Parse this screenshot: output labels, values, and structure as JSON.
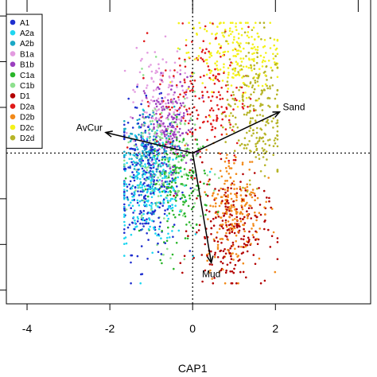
{
  "chart_data": {
    "type": "scatter",
    "xlabel": "CAP1",
    "xlim": [
      -4.5,
      4.3
    ],
    "ylim": [
      -3.3,
      3.35
    ],
    "x_ticks": [
      -4,
      -2,
      0,
      2
    ],
    "grid": false,
    "legend_position": "top-left",
    "series": [
      {
        "name": "A1",
        "color": "#1f2fcf",
        "center": [
          -1.1,
          -0.55
        ],
        "spread": [
          0.38,
          0.8
        ],
        "n": 300
      },
      {
        "name": "A2a",
        "color": "#1fd6f0",
        "center": [
          -1.0,
          -0.85
        ],
        "spread": [
          0.45,
          0.55
        ],
        "n": 240
      },
      {
        "name": "A2b",
        "color": "#1aa8c6",
        "center": [
          -1.15,
          -0.1
        ],
        "spread": [
          0.35,
          0.55
        ],
        "n": 150
      },
      {
        "name": "B1a",
        "color": "#e39be0",
        "center": [
          -0.85,
          1.15
        ],
        "spread": [
          0.3,
          0.6
        ],
        "n": 140
      },
      {
        "name": "B1b",
        "color": "#9b3fbf",
        "center": [
          -0.55,
          0.55
        ],
        "spread": [
          0.3,
          0.55
        ],
        "n": 160
      },
      {
        "name": "C1a",
        "color": "#2ab52a",
        "center": [
          -0.3,
          -0.65
        ],
        "spread": [
          0.35,
          0.6
        ],
        "n": 170
      },
      {
        "name": "C1b",
        "color": "#8ee08e",
        "center": [
          -0.7,
          -0.2
        ],
        "spread": [
          0.45,
          0.85
        ],
        "n": 170
      },
      {
        "name": "D1",
        "color": "#b30000",
        "center": [
          0.9,
          -1.7
        ],
        "spread": [
          0.45,
          0.6
        ],
        "n": 220
      },
      {
        "name": "D2a",
        "color": "#e01a1a",
        "center": [
          0.25,
          1.25
        ],
        "spread": [
          0.55,
          0.75
        ],
        "n": 190
      },
      {
        "name": "D2b",
        "color": "#f28a1a",
        "center": [
          1.0,
          -1.2
        ],
        "spread": [
          0.35,
          0.65
        ],
        "n": 220
      },
      {
        "name": "D2c",
        "color": "#f4f21a",
        "center": [
          1.0,
          2.15
        ],
        "spread": [
          0.55,
          0.45
        ],
        "n": 230
      },
      {
        "name": "D2d",
        "color": "#b6b428",
        "center": [
          1.5,
          0.95
        ],
        "spread": [
          0.35,
          0.8
        ],
        "n": 240
      }
    ],
    "vectors": [
      {
        "label": "AvCur",
        "x": -2.1,
        "y": 0.45
      },
      {
        "label": "Sand",
        "x": 2.1,
        "y": 0.9
      },
      {
        "label": "Mud",
        "x": 0.45,
        "y": -2.4
      }
    ]
  }
}
